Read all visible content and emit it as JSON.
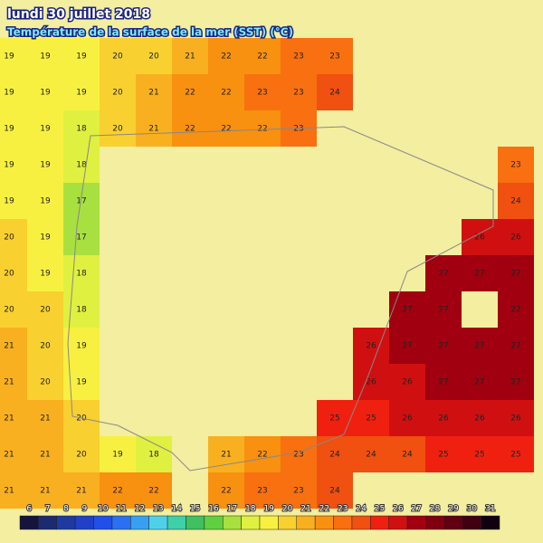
{
  "header": {
    "title": "lundi 30 juillet 2018",
    "subtitle": "Température de la surface de la mer (SST) (°C)"
  },
  "sst": {
    "rows": [
      [
        19,
        19,
        19,
        20,
        20,
        21,
        22,
        22,
        23,
        23,
        null,
        null,
        null,
        null,
        null
      ],
      [
        19,
        19,
        19,
        20,
        21,
        22,
        22,
        23,
        23,
        24,
        null,
        null,
        null,
        null,
        null
      ],
      [
        19,
        19,
        18,
        20,
        21,
        22,
        22,
        22,
        23,
        null,
        null,
        null,
        null,
        null,
        null
      ],
      [
        19,
        19,
        18,
        null,
        null,
        null,
        null,
        null,
        null,
        null,
        null,
        null,
        null,
        null,
        23
      ],
      [
        19,
        19,
        17,
        null,
        null,
        null,
        null,
        null,
        null,
        null,
        null,
        null,
        null,
        null,
        24
      ],
      [
        20,
        19,
        17,
        null,
        null,
        null,
        null,
        null,
        null,
        null,
        null,
        null,
        null,
        26,
        26
      ],
      [
        20,
        19,
        18,
        null,
        null,
        null,
        null,
        null,
        null,
        null,
        null,
        null,
        27,
        27,
        27
      ],
      [
        20,
        20,
        18,
        null,
        null,
        null,
        null,
        null,
        null,
        null,
        null,
        27,
        27,
        null,
        27
      ],
      [
        21,
        20,
        19,
        null,
        null,
        null,
        null,
        null,
        null,
        null,
        26,
        27,
        27,
        27,
        27
      ],
      [
        21,
        20,
        19,
        null,
        null,
        null,
        null,
        null,
        null,
        null,
        26,
        26,
        27,
        27,
        27
      ],
      [
        21,
        21,
        20,
        null,
        null,
        null,
        null,
        null,
        null,
        25,
        25,
        26,
        26,
        26,
        26
      ],
      [
        21,
        21,
        20,
        19,
        18,
        null,
        21,
        22,
        23,
        24,
        24,
        24,
        25,
        25,
        25
      ],
      [
        21,
        21,
        21,
        22,
        22,
        null,
        22,
        23,
        23,
        24,
        null,
        null,
        null,
        null,
        null
      ]
    ]
  },
  "scale": {
    "values": [
      6,
      7,
      8,
      9,
      10,
      11,
      12,
      13,
      14,
      15,
      16,
      17,
      18,
      19,
      20,
      21,
      22,
      23,
      24,
      25,
      26,
      27,
      28,
      29,
      30,
      31
    ],
    "colors": [
      "#14143c",
      "#1c2a70",
      "#1e3aa0",
      "#2040c8",
      "#2050e8",
      "#2a70f0",
      "#38a0f0",
      "#50d0e8",
      "#40d0a8",
      "#40c060",
      "#60d040",
      "#a8e040",
      "#e0f040",
      "#f8f040",
      "#f8d030",
      "#f8b020",
      "#f89010",
      "#f87010",
      "#f05010",
      "#f02010",
      "#d01010",
      "#a00010",
      "#800010",
      "#600010",
      "#400010",
      "#100010"
    ],
    "land": "#f3eea0"
  }
}
